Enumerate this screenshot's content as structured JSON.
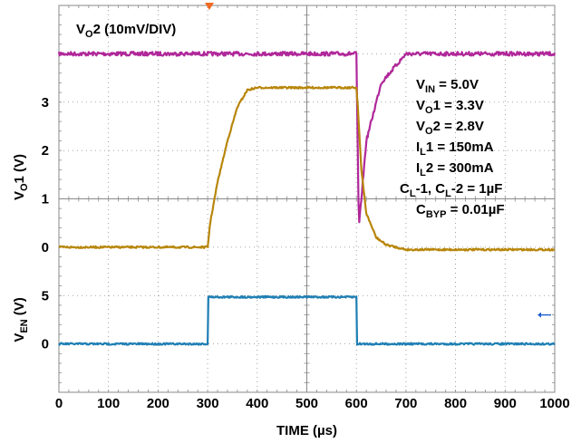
{
  "chart_data": {
    "type": "line",
    "xlabel": "TIME (µs)",
    "x_ticks": [
      "0",
      "100",
      "200",
      "300",
      "400",
      "500",
      "600",
      "700",
      "800",
      "900",
      "1000"
    ],
    "xlim": [
      0,
      1000
    ],
    "grid": true,
    "channels": [
      {
        "id": "vo2",
        "label_main": "V",
        "label_sub": "O",
        "label_rest": "2 (10mV/DIV)",
        "color": "#b0279a",
        "x": [
          0,
          600,
          605,
          620,
          650,
          700,
          1000
        ],
        "y": [
          0,
          0,
          -0.6,
          -0.3,
          -0.1,
          0,
          0
        ]
      },
      {
        "id": "vo1",
        "ylabel_main": "V",
        "ylabel_sub": "O",
        "ylabel_rest": "1 (V)",
        "y_ticks": [
          "0",
          "1",
          "2",
          "3"
        ],
        "color": "#b8860b",
        "x": [
          0,
          300,
          305,
          320,
          340,
          360,
          380,
          400,
          600,
          603,
          610,
          620,
          640,
          660,
          680,
          700,
          1000
        ],
        "y": [
          0,
          0,
          0.5,
          1.35,
          2.2,
          2.9,
          3.25,
          3.3,
          3.3,
          2.9,
          1.6,
          0.7,
          0.2,
          0.05,
          0.0,
          -0.05,
          -0.05
        ]
      },
      {
        "id": "ven",
        "ylabel_main": "V",
        "ylabel_sub": "EN",
        "ylabel_rest": " (V)",
        "y_ticks": [
          "0",
          "5"
        ],
        "color": "#1f7fb4",
        "x": [
          0,
          300,
          300.5,
          600,
          600.5,
          1000
        ],
        "y": [
          0,
          0,
          4.85,
          4.85,
          0,
          0
        ]
      }
    ],
    "conditions": [
      {
        "main": "V",
        "sub": "IN",
        "rest": " = 5.0V"
      },
      {
        "main": "V",
        "sub": "O",
        "rest": "1 = 3.3V"
      },
      {
        "main": "V",
        "sub": "O",
        "rest": "2 = 2.8V"
      },
      {
        "main": "I",
        "sub": "L",
        "rest": "1 = 150mA"
      },
      {
        "main": "I",
        "sub": "L",
        "rest": "2 = 300mA"
      },
      {
        "main": "C",
        "sub": "L",
        "rest": "-1, C",
        "main2": "",
        "sub2": "L",
        "rest2": "-2 = 1µF"
      },
      {
        "main": "C",
        "sub": "BYP",
        "rest": " = 0.01µF"
      }
    ]
  }
}
